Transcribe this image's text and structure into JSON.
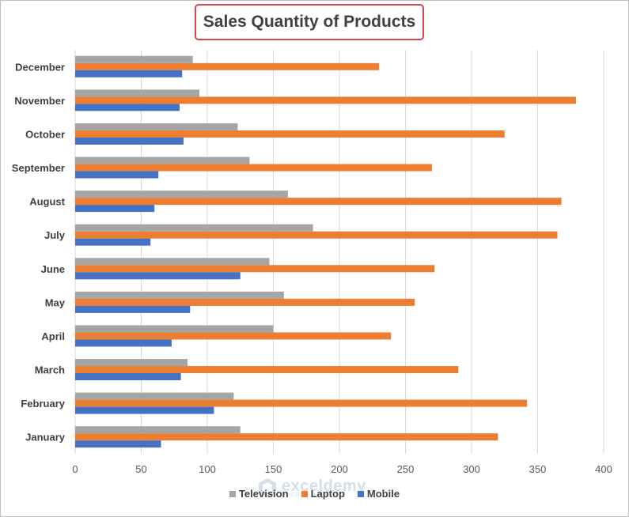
{
  "chart_data": {
    "type": "bar",
    "orientation": "horizontal",
    "title": "Sales Quantity of Products",
    "categories": [
      "January",
      "February",
      "March",
      "April",
      "May",
      "June",
      "July",
      "August",
      "September",
      "October",
      "November",
      "December"
    ],
    "series": [
      {
        "name": "Mobile",
        "color": "#4472c4",
        "values": [
          65,
          105,
          80,
          73,
          87,
          125,
          57,
          60,
          63,
          82,
          79,
          81
        ]
      },
      {
        "name": "Laptop",
        "color": "#ed7d31",
        "values": [
          320,
          342,
          290,
          239,
          257,
          272,
          365,
          368,
          270,
          325,
          379,
          230
        ]
      },
      {
        "name": "Television",
        "color": "#a5a5a5",
        "values": [
          125,
          120,
          85,
          150,
          158,
          147,
          180,
          161,
          132,
          123,
          94,
          89
        ]
      }
    ],
    "xlim": [
      0,
      400
    ],
    "xticks": [
      0,
      50,
      100,
      150,
      200,
      250,
      300,
      350,
      400
    ],
    "grid": true,
    "legend_position": "bottom",
    "legend_order": [
      "Television",
      "Laptop",
      "Mobile"
    ]
  },
  "watermark": {
    "name": "exceldemy",
    "tagline": "EXCEL · DATA · BI"
  }
}
